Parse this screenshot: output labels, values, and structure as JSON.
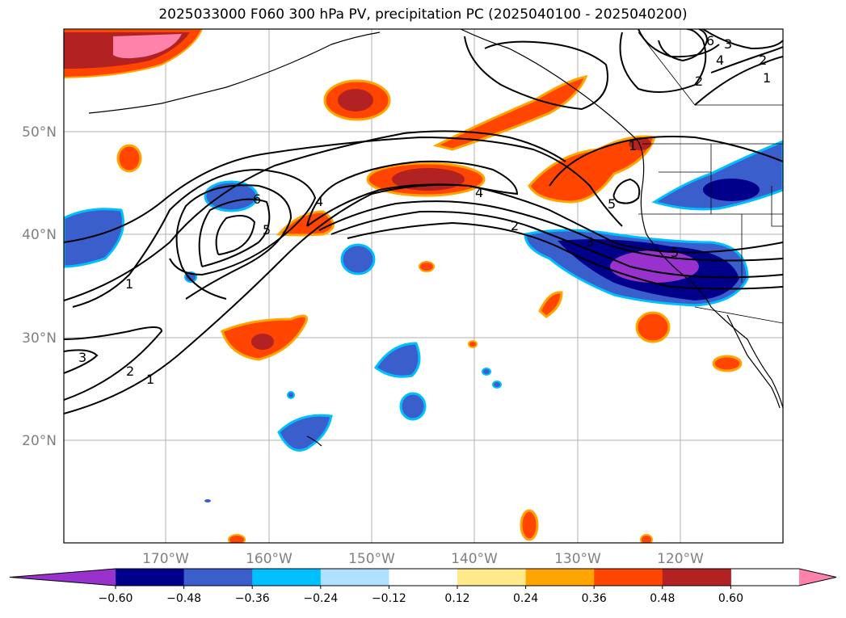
{
  "title": "2025033000 F060 300 hPa PV, precipitation PC (2025040100 - 2025040200)",
  "lat_labels": [
    "50°N",
    "40°N",
    "30°N",
    "20°N"
  ],
  "lon_labels": [
    "170°W",
    "160°W",
    "150°W",
    "140°W",
    "130°W",
    "120°W"
  ],
  "colorbar": {
    "ticks": [
      "−0.60",
      "−0.48",
      "−0.36",
      "−0.24",
      "−0.12",
      "0.12",
      "0.24",
      "0.36",
      "0.48",
      "0.60"
    ],
    "colors": [
      "#9932CC",
      "#00008B",
      "#3A5FCD",
      "#00BFFF",
      "#B0E0FF",
      "#FFFFFF",
      "#FFE98A",
      "#FFA500",
      "#FF4500",
      "#B22222",
      "#FF82AB"
    ]
  },
  "contour_labels": [
    "1",
    "2",
    "3",
    "4",
    "5",
    "6",
    "1",
    "2",
    "3",
    "4",
    "5",
    "6",
    "4",
    "2",
    "1",
    "2",
    "3",
    "1",
    "5"
  ],
  "icons": {
    "colorbar_left": "triangle-left",
    "colorbar_right": "triangle-right"
  }
}
